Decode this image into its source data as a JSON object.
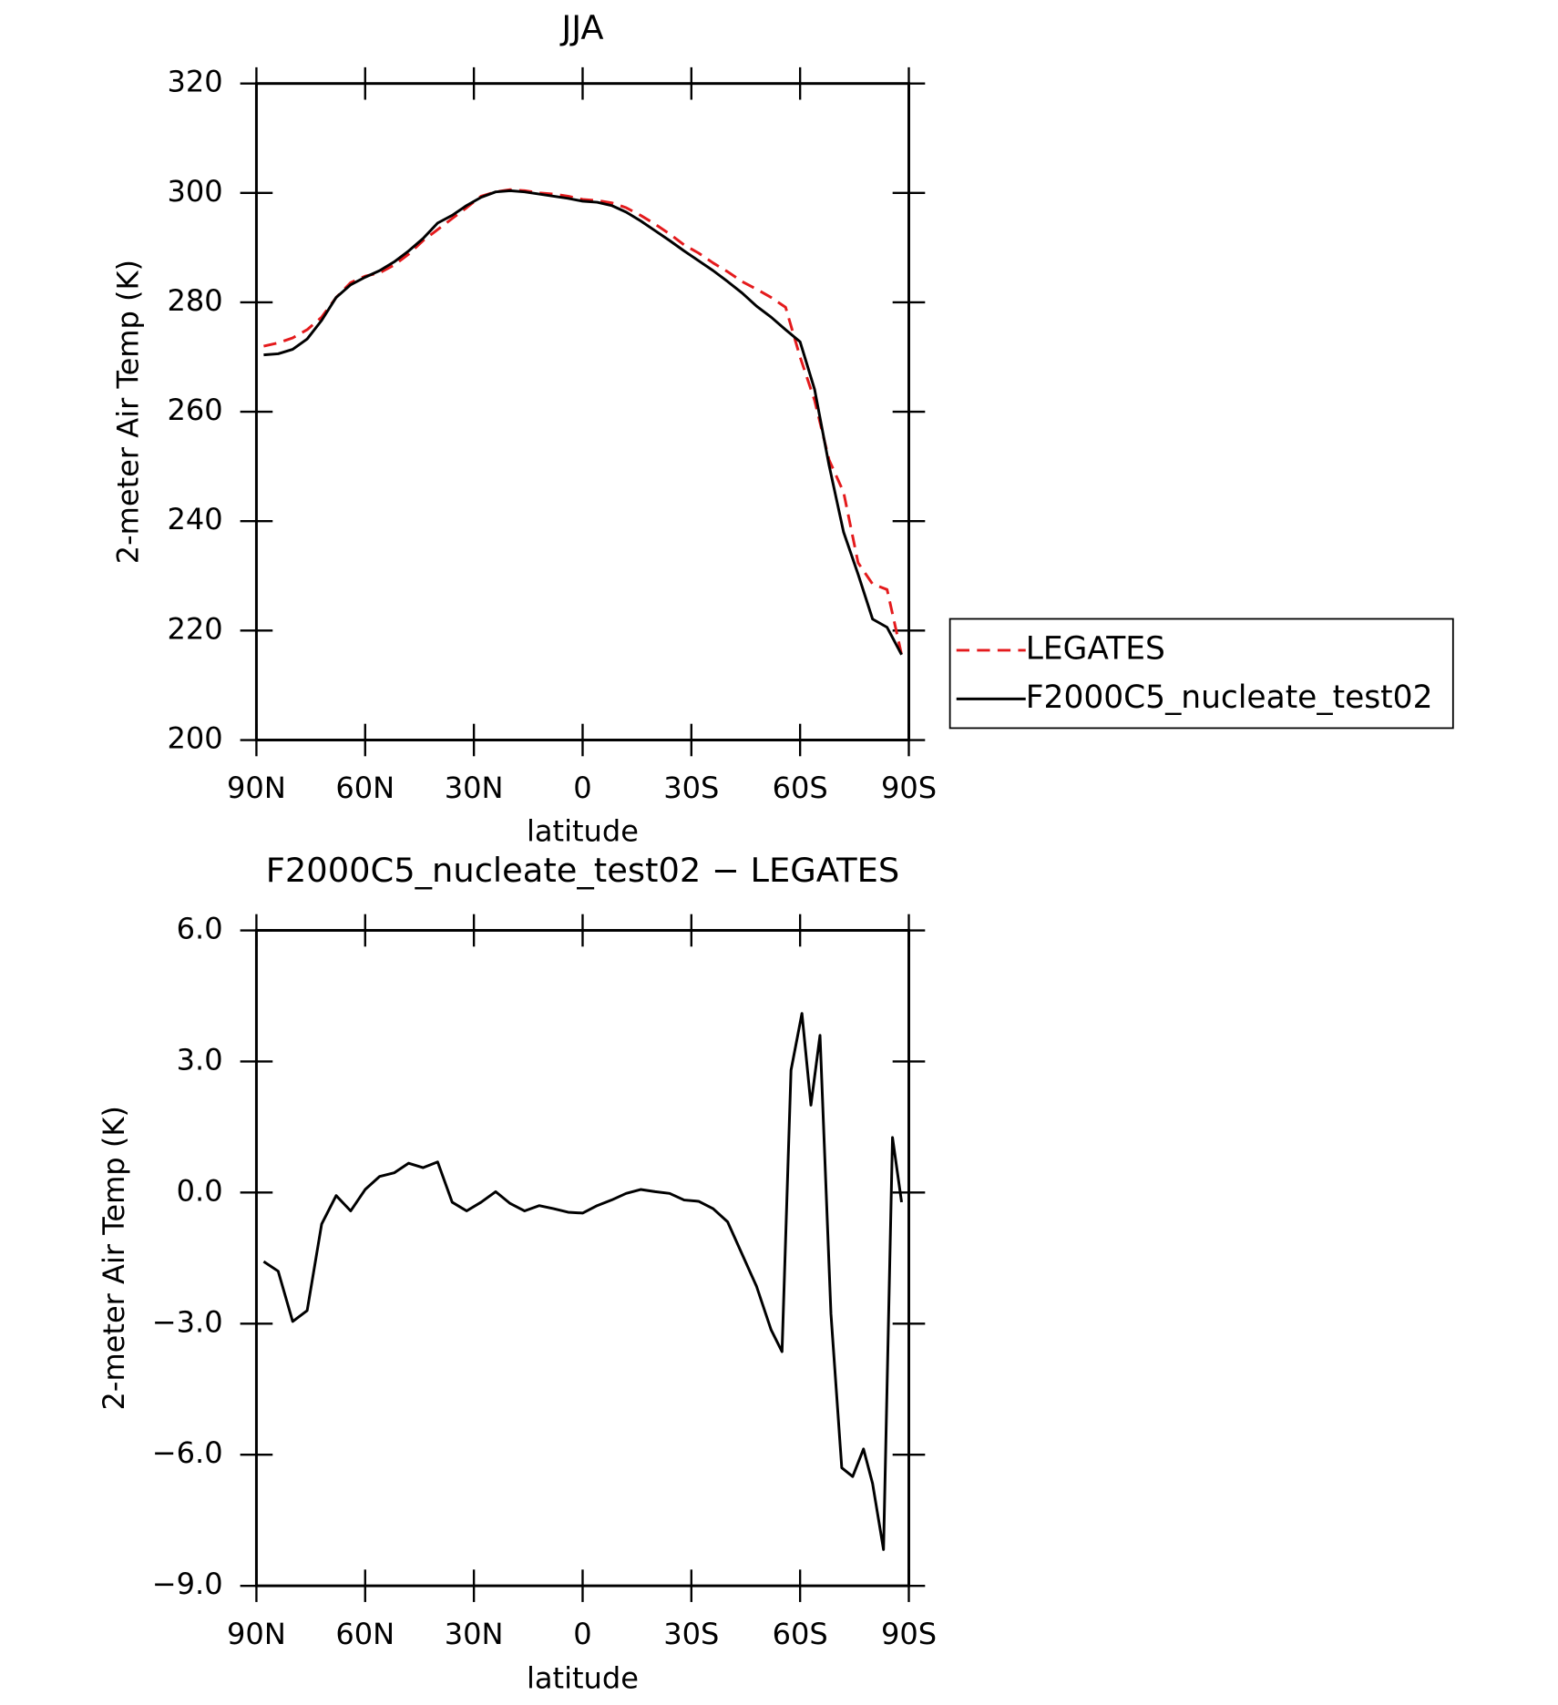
{
  "chart_data": [
    {
      "type": "line",
      "title": "JJA",
      "x_label": "latitude",
      "y_label": "2-meter Air Temp (K)",
      "x": [
        88,
        84,
        80,
        76,
        72,
        68,
        64,
        60,
        56,
        52,
        48,
        44,
        40,
        36,
        32,
        28,
        24,
        20,
        16,
        12,
        8,
        4,
        0,
        -4,
        -8,
        -12,
        -16,
        -20,
        -24,
        -28,
        -32,
        -36,
        -40,
        -44,
        -48,
        -52,
        -56,
        -60,
        -64,
        -68,
        -72,
        -76,
        -80,
        -84,
        -88
      ],
      "series": [
        {
          "name": "LEGATES",
          "color": "#e41a1c",
          "line_style": "dashed",
          "values": [
            272,
            272.6,
            273.5,
            275,
            277.3,
            280.9,
            283.6,
            284.8,
            285.4,
            286.8,
            288.8,
            291.3,
            293.3,
            295.3,
            297.3,
            299.4,
            300.2,
            300.6,
            300.4,
            300,
            299.8,
            299.4,
            298.8,
            298.6,
            298.2,
            297.3,
            295.9,
            294.3,
            292.5,
            290.5,
            289,
            287.2,
            285.6,
            283.8,
            282.4,
            280.9,
            279.1,
            270,
            262.1,
            251.2,
            245.3,
            232.4,
            228.5,
            227.5,
            215.6
          ]
        },
        {
          "name": "F2000C5_nucleate_test02",
          "color": "#000000",
          "line_style": "solid",
          "values": [
            270.4,
            270.6,
            271.4,
            273.3,
            276.7,
            280.9,
            283.2,
            284.6,
            285.8,
            287.4,
            289.4,
            291.7,
            294.5,
            295.9,
            297.7,
            299.2,
            300.2,
            300.4,
            300.2,
            299.8,
            299.4,
            299,
            298.5,
            298.3,
            297.7,
            296.5,
            294.9,
            293.1,
            291.3,
            289.4,
            287.6,
            285.8,
            283.8,
            281.7,
            279.3,
            277.3,
            275,
            272.8,
            264.1,
            250.2,
            238,
            230.3,
            222.1,
            220.6,
            215.6
          ]
        }
      ],
      "xlim": [
        90,
        -90
      ],
      "xticks": [
        {
          "value": 90,
          "label": "90N"
        },
        {
          "value": 60,
          "label": "60N"
        },
        {
          "value": 30,
          "label": "30N"
        },
        0,
        {
          "value": -30,
          "label": "30S"
        },
        {
          "value": -60,
          "label": "60S"
        },
        {
          "value": -90,
          "label": "90S"
        }
      ],
      "ylim": [
        200,
        320
      ],
      "yticks": [
        200,
        220,
        240,
        260,
        280,
        300,
        320
      ],
      "legend": "outside-right"
    },
    {
      "type": "line",
      "title": "F2000C5_nucleate_test02 − LEGATES",
      "x_label": "latitude",
      "y_label": "2-meter Air Temp (K)",
      "x": [
        88,
        84,
        80,
        76,
        72,
        68,
        64,
        60,
        56,
        52,
        48,
        44,
        40,
        36,
        32,
        28,
        24,
        20,
        16,
        12,
        8,
        4,
        0,
        -4,
        -8,
        -12,
        -16,
        -20,
        -24,
        -28,
        -32,
        -36,
        -40,
        -44,
        -48,
        -52,
        -55,
        -57.5,
        -60.5,
        -63,
        -65.5,
        -68.5,
        -71.5,
        -74.5,
        -77.5,
        -80,
        -83,
        -85.5,
        -88
      ],
      "color": "#000000",
      "values": [
        -1.58,
        -1.8,
        -2.95,
        -2.7,
        -0.72,
        -0.07,
        -0.42,
        0.07,
        0.37,
        0.45,
        0.67,
        0.57,
        0.7,
        -0.22,
        -0.42,
        -0.22,
        0.02,
        -0.25,
        -0.42,
        -0.3,
        -0.37,
        -0.45,
        -0.47,
        -0.3,
        -0.17,
        -0.02,
        0.07,
        0.02,
        -0.02,
        -0.17,
        -0.2,
        -0.37,
        -0.67,
        -1.41,
        -2.15,
        -3.14,
        -3.64,
        2.8,
        4.1,
        2.0,
        3.6,
        -2.77,
        -6.3,
        -6.5,
        -5.87,
        -6.66,
        -8.17,
        1.26,
        -0.22
      ],
      "xlim": [
        90,
        -90
      ],
      "xticks": [
        {
          "value": 90,
          "label": "90N"
        },
        {
          "value": 60,
          "label": "60N"
        },
        {
          "value": 30,
          "label": "30N"
        },
        0,
        {
          "value": -30,
          "label": "30S"
        },
        {
          "value": -60,
          "label": "60S"
        },
        {
          "value": -90,
          "label": "90S"
        }
      ],
      "ylim": [
        -9,
        6
      ],
      "yticks": [
        {
          "value": -9,
          "label": "−9.0"
        },
        {
          "value": -6,
          "label": "−6.0"
        },
        {
          "value": -3,
          "label": "−3.0"
        },
        {
          "value": 0,
          "label": "0.0"
        },
        {
          "value": 3,
          "label": "3.0"
        },
        {
          "value": 6,
          "label": "6.0"
        }
      ]
    }
  ]
}
